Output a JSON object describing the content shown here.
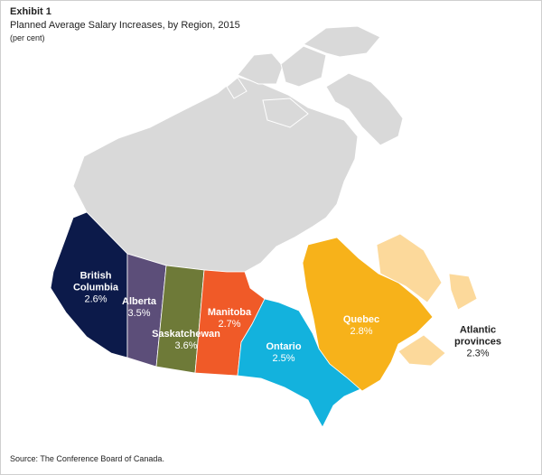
{
  "chart_data": {
    "type": "map",
    "exhibit": "Exhibit 1",
    "title": "Planned Average Salary Increases, by Region, 2015",
    "subtitle": "(per cent)",
    "categories": [
      "British Columbia",
      "Alberta",
      "Saskatchewan",
      "Manitoba",
      "Ontario",
      "Quebec",
      "Atlantic provinces"
    ],
    "values": [
      2.6,
      3.5,
      3.6,
      2.7,
      2.5,
      2.8,
      2.3
    ],
    "value_labels": [
      "2.6%",
      "3.5%",
      "3.6%",
      "2.7%",
      "2.5%",
      "2.8%",
      "2.3%"
    ],
    "colors": [
      "#0c1a4a",
      "#5c4e79",
      "#6e7a38",
      "#f05a28",
      "#13b2dd",
      "#f7b21a",
      "#fcd99b"
    ],
    "source": "Source: The Conference Board of Canada."
  }
}
